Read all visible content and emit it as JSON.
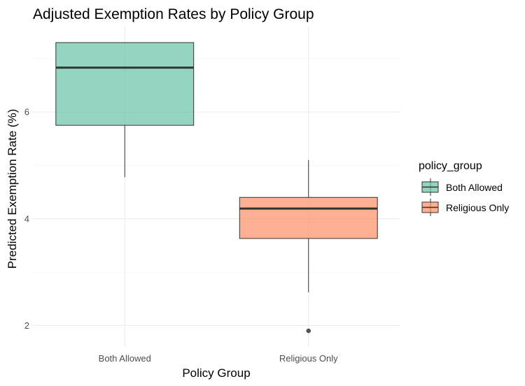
{
  "chart_data": {
    "type": "boxplot",
    "title": "Adjusted Exemption Rates by Policy Group",
    "xlabel": "Policy Group",
    "ylabel": "Predicted Exemption Rate (%)",
    "categories": [
      "Both Allowed",
      "Religious Only"
    ],
    "ylim": [
      1.6,
      7.6
    ],
    "yticks": [
      2,
      4,
      6
    ],
    "grid": true,
    "legend": {
      "title": "policy_group",
      "placement": "right",
      "entries": [
        "Both Allowed",
        "Religious Only"
      ]
    },
    "boxes": [
      {
        "category": "Both Allowed",
        "whisker_low": 4.78,
        "q1": 5.75,
        "median": 6.83,
        "q3": 7.3,
        "whisker_high": 7.3,
        "outliers": [],
        "color": "#66c2a5"
      },
      {
        "category": "Religious Only",
        "whisker_low": 2.62,
        "q1": 3.63,
        "median": 4.19,
        "q3": 4.4,
        "whisker_high": 5.1,
        "outliers": [
          1.9
        ],
        "color": "#fc8d62"
      }
    ]
  }
}
